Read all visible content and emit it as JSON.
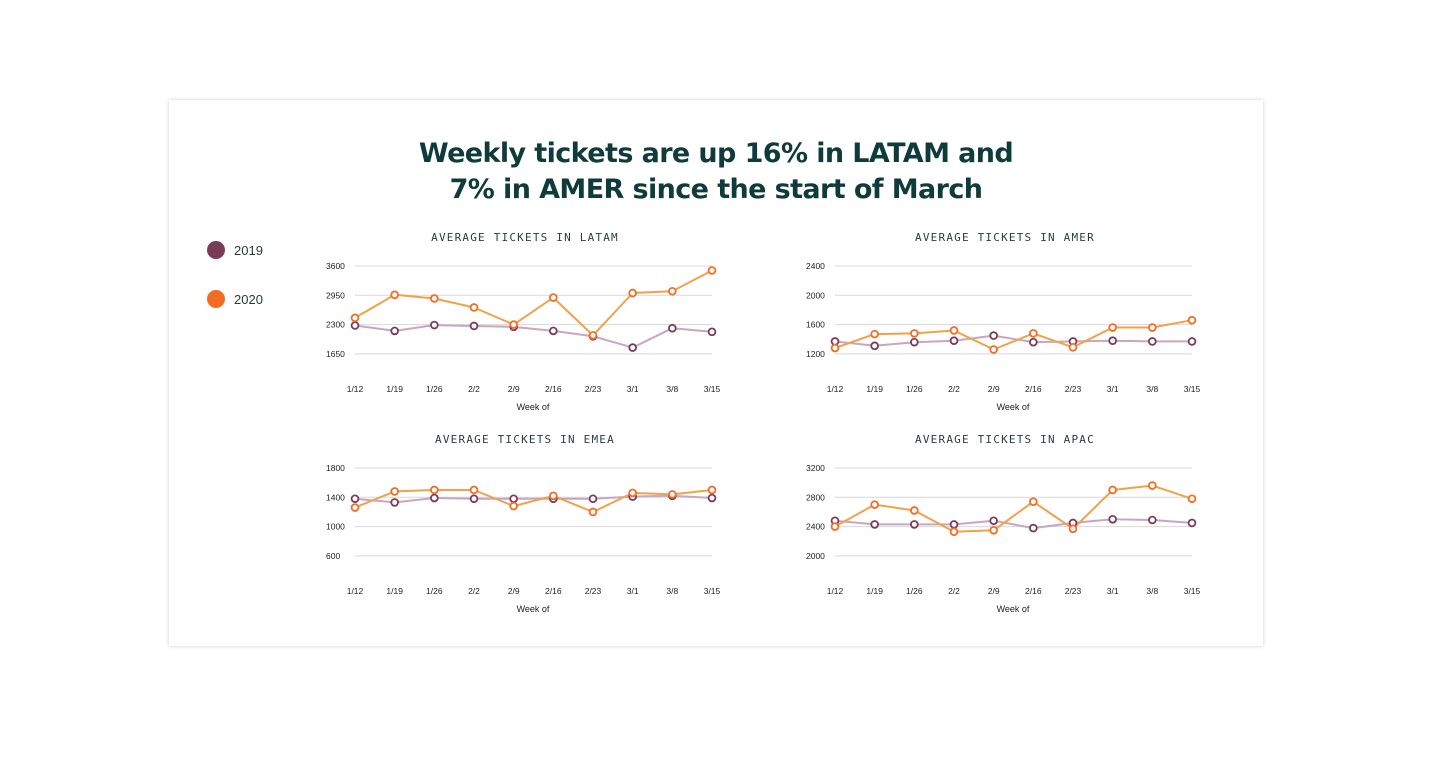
{
  "headline": {
    "line1": "Weekly tickets are up 16% in LATAM and",
    "line2": "7% in AMER since the start of March"
  },
  "legend": [
    {
      "label": "2019",
      "color": "#7a3b58"
    },
    {
      "label": "2020",
      "color": "#f26c21"
    }
  ],
  "colors": {
    "line2019": "#c9a6c0",
    "line2020": "#f0a24a",
    "grid": "#d8d8dc"
  },
  "chart_data": [
    {
      "type": "line",
      "title": "AVERAGE TICKETS IN LATAM",
      "xlabel": "Week of",
      "categories": [
        "1/12",
        "1/19",
        "1/26",
        "2/2",
        "2/9",
        "2/16",
        "2/23",
        "3/1",
        "3/8",
        "3/15"
      ],
      "yticks": [
        3600,
        2950,
        2300,
        1650
      ],
      "ylim": [
        1650,
        3600
      ],
      "series": [
        {
          "name": "2019",
          "values": [
            2280,
            2160,
            2290,
            2270,
            2250,
            2160,
            2040,
            1790,
            2220,
            2140
          ]
        },
        {
          "name": "2020",
          "values": [
            2450,
            2960,
            2880,
            2680,
            2300,
            2900,
            2060,
            3000,
            3040,
            3500
          ]
        }
      ]
    },
    {
      "type": "line",
      "title": "AVERAGE TICKETS IN AMER",
      "xlabel": "Week of",
      "categories": [
        "1/12",
        "1/19",
        "1/26",
        "2/2",
        "2/9",
        "2/16",
        "2/23",
        "3/1",
        "3/8",
        "3/15"
      ],
      "yticks": [
        2400,
        2000,
        1600,
        1200
      ],
      "ylim": [
        1200,
        2400
      ],
      "series": [
        {
          "name": "2019",
          "values": [
            1370,
            1310,
            1360,
            1380,
            1450,
            1360,
            1370,
            1380,
            1370,
            1370
          ]
        },
        {
          "name": "2020",
          "values": [
            1280,
            1470,
            1480,
            1520,
            1260,
            1480,
            1290,
            1560,
            1560,
            1660
          ]
        }
      ]
    },
    {
      "type": "line",
      "title": "AVERAGE TICKETS IN EMEA",
      "xlabel": "Week of",
      "categories": [
        "1/12",
        "1/19",
        "1/26",
        "2/2",
        "2/9",
        "2/16",
        "2/23",
        "3/1",
        "3/8",
        "3/15"
      ],
      "yticks": [
        1800,
        1400,
        1000,
        600
      ],
      "ylim": [
        600,
        1800
      ],
      "series": [
        {
          "name": "2019",
          "values": [
            1380,
            1330,
            1390,
            1380,
            1380,
            1380,
            1380,
            1410,
            1420,
            1390
          ]
        },
        {
          "name": "2020",
          "values": [
            1260,
            1480,
            1500,
            1500,
            1280,
            1420,
            1200,
            1460,
            1440,
            1500
          ]
        }
      ]
    },
    {
      "type": "line",
      "title": "AVERAGE TICKETS IN APAC",
      "xlabel": "Week of",
      "categories": [
        "1/12",
        "1/19",
        "1/26",
        "2/2",
        "2/9",
        "2/16",
        "2/23",
        "3/1",
        "3/8",
        "3/15"
      ],
      "yticks": [
        3200,
        2800,
        2400,
        2000
      ],
      "ylim": [
        2000,
        3200
      ],
      "series": [
        {
          "name": "2019",
          "values": [
            2480,
            2430,
            2430,
            2430,
            2480,
            2380,
            2450,
            2500,
            2490,
            2450
          ]
        },
        {
          "name": "2020",
          "values": [
            2400,
            2700,
            2620,
            2330,
            2350,
            2740,
            2370,
            2900,
            2960,
            2780
          ]
        }
      ]
    }
  ]
}
